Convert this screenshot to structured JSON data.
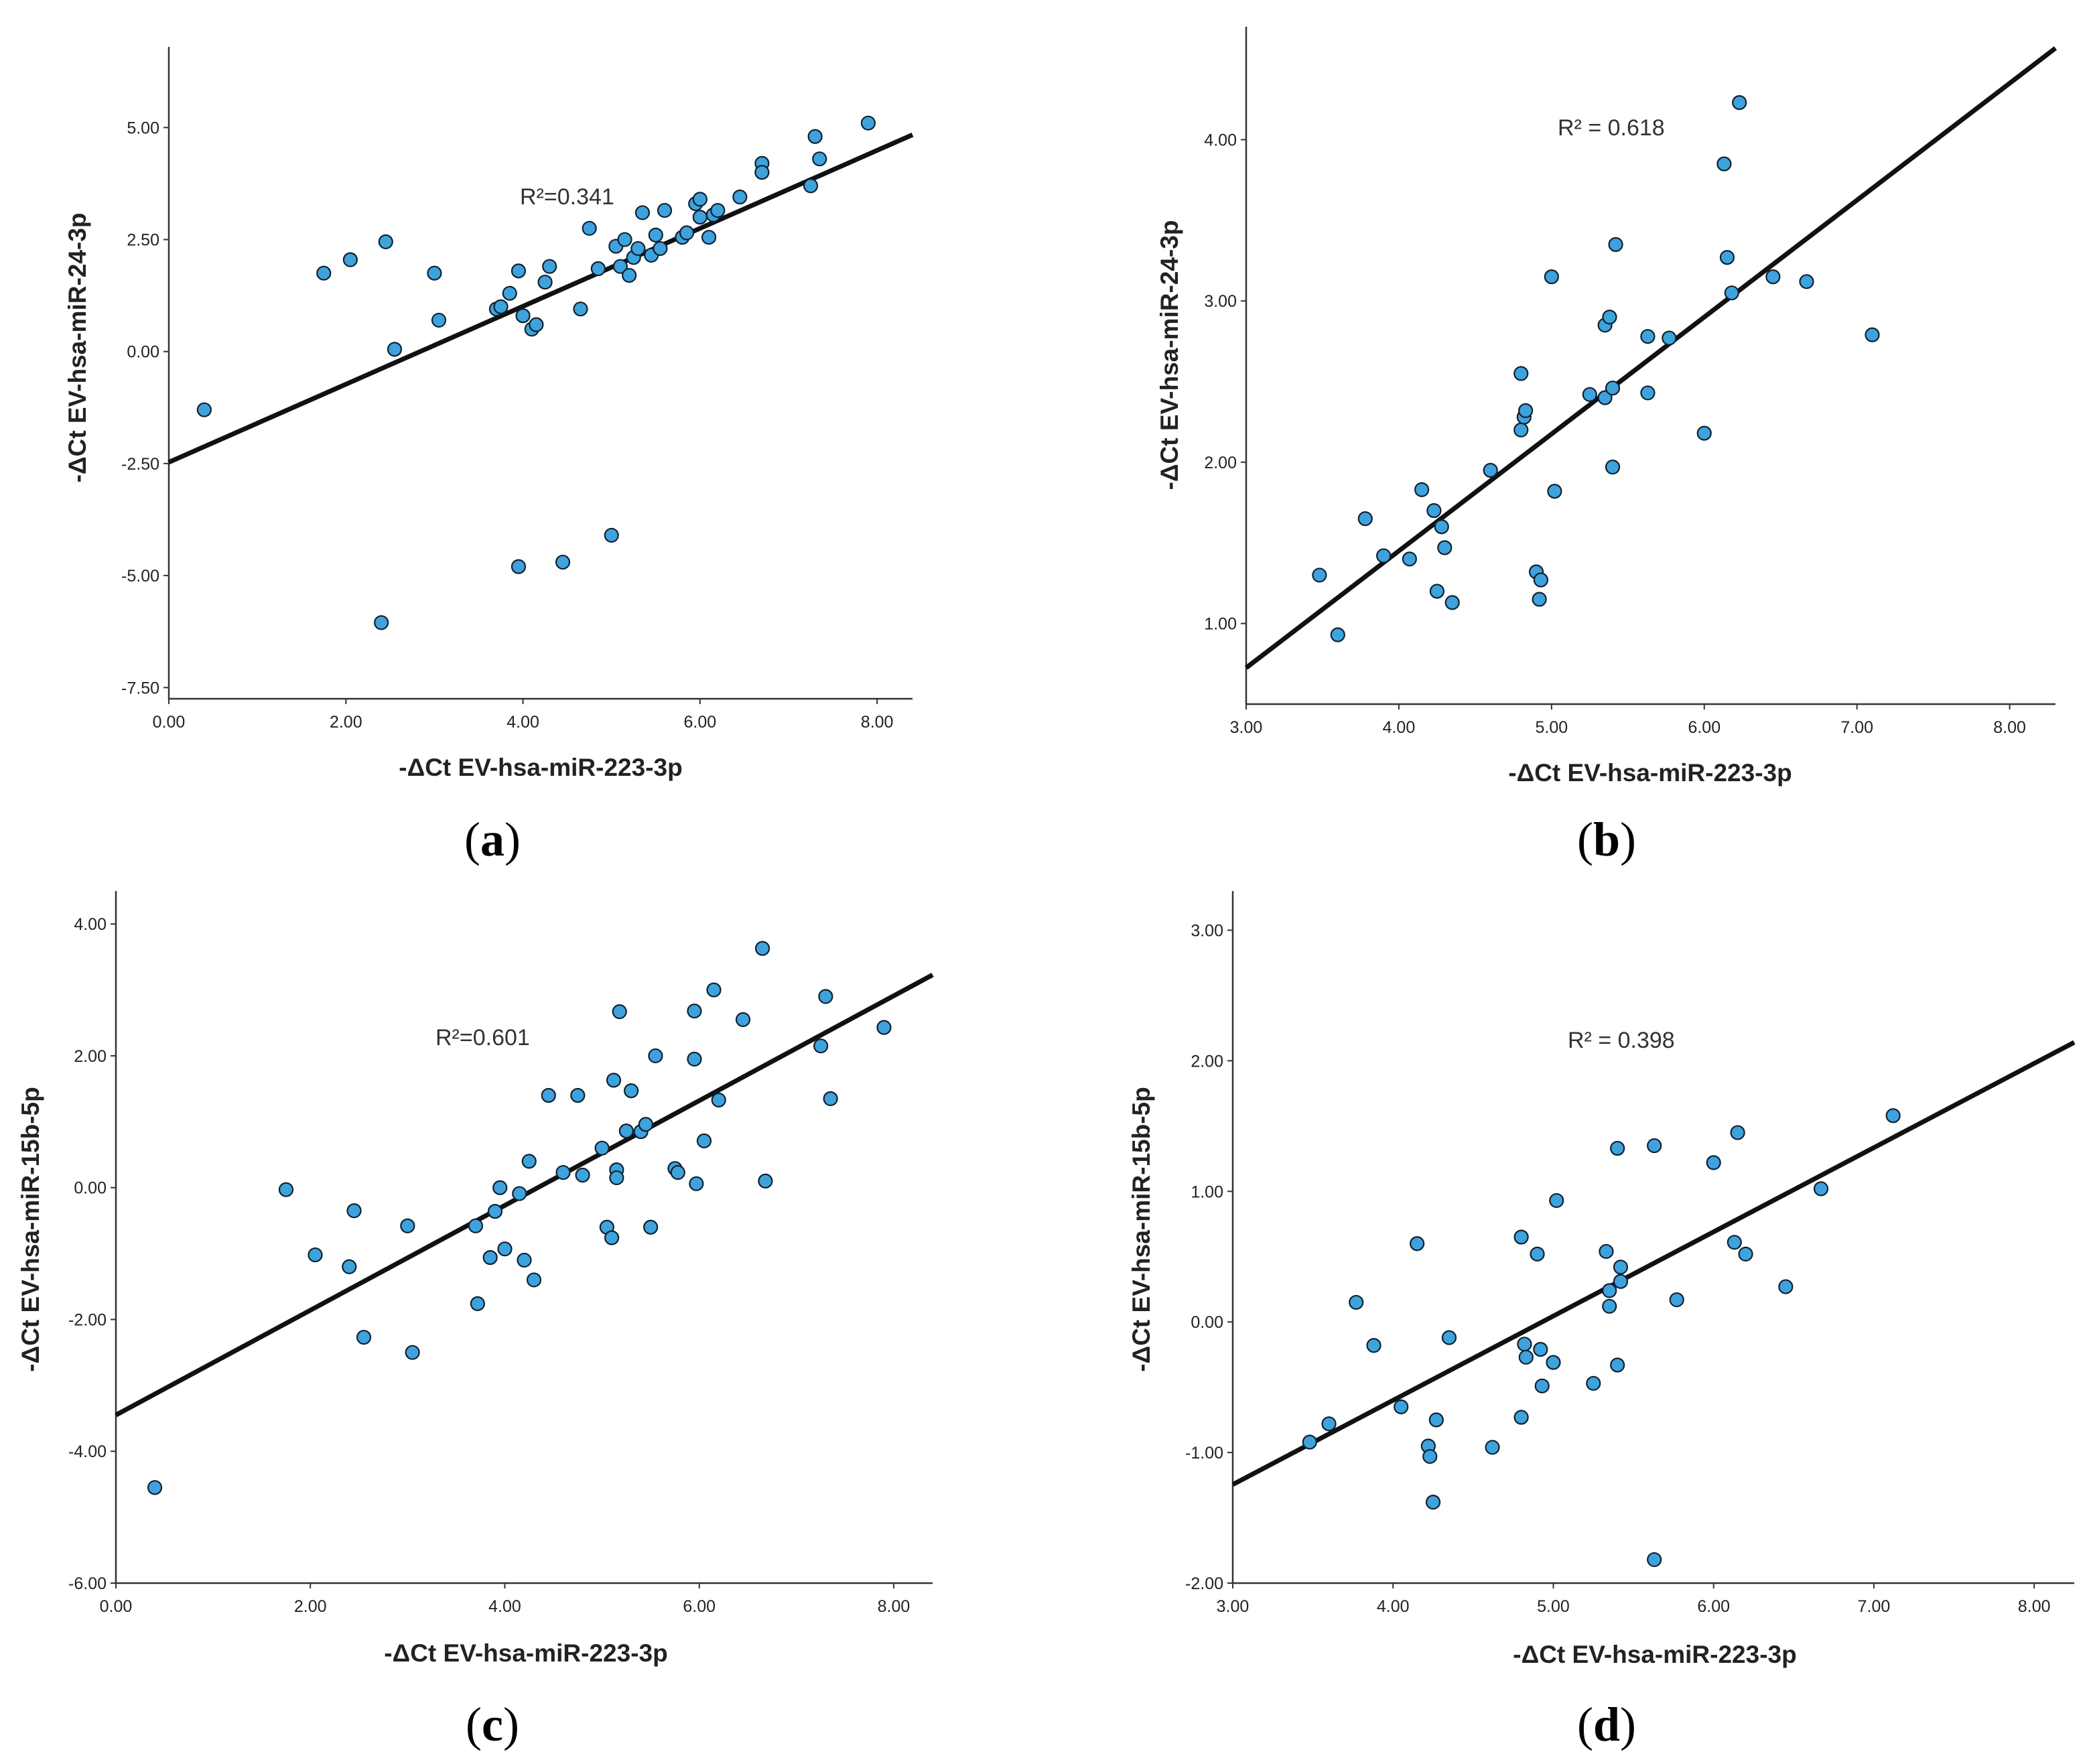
{
  "colors": {
    "point_fill": "#3ea2dc",
    "point_stroke": "#102030",
    "line": "#111111",
    "axis": "#333333"
  },
  "chart_data": [
    {
      "type": "scatter",
      "panel_label": "a",
      "title": "",
      "r2_text": "R²=0.341",
      "xlabel": "-ΔCt EV-hsa-miR-223-3p",
      "ylabel": "-ΔCt EV-hsa-miR-24-3p",
      "xlim": [
        0,
        8.4
      ],
      "ylim": [
        -7.75,
        6.8
      ],
      "xticks": [
        0,
        2,
        4,
        6,
        8
      ],
      "xtick_labels": [
        "0.00",
        "2.00",
        "4.00",
        "6.00",
        "8.00"
      ],
      "yticks": [
        -7.5,
        -5,
        -2.5,
        0,
        2.5,
        5
      ],
      "ytick_labels": [
        "-7.50",
        "-5.00",
        "-2.50",
        "0.00",
        "2.50",
        "5.00"
      ],
      "fit_line": {
        "intercept": -2.47,
        "slope": 0.87
      },
      "x": [
        0.4,
        1.75,
        2.05,
        2.45,
        2.55,
        3.0,
        3.05,
        3.7,
        3.75,
        3.85,
        3.95,
        4.0,
        4.1,
        4.15,
        4.25,
        4.3,
        4.65,
        4.75,
        4.85,
        5.05,
        5.1,
        5.15,
        5.2,
        5.25,
        5.3,
        5.35,
        5.45,
        5.5,
        5.55,
        5.6,
        5.8,
        5.85,
        5.95,
        6.0,
        6.0,
        6.1,
        6.15,
        6.2,
        6.45,
        6.7,
        6.7,
        7.25,
        7.3,
        7.35,
        7.9,
        2.4,
        3.95,
        4.45,
        5.0
      ],
      "y": [
        -1.3,
        1.75,
        2.05,
        2.45,
        0.05,
        1.75,
        0.7,
        0.95,
        1.0,
        1.3,
        1.8,
        0.8,
        0.5,
        0.6,
        1.55,
        1.9,
        0.95,
        2.75,
        1.85,
        2.35,
        1.9,
        2.5,
        1.7,
        2.1,
        2.3,
        3.1,
        2.15,
        2.6,
        2.3,
        3.15,
        2.55,
        2.65,
        3.3,
        3.0,
        3.4,
        2.55,
        3.05,
        3.15,
        3.45,
        4.2,
        4.0,
        3.7,
        4.8,
        4.3,
        5.1,
        -6.05,
        -4.8,
        -4.7,
        -4.1
      ]
    },
    {
      "type": "scatter",
      "panel_label": "b",
      "title": "",
      "r2_text": "R² = 0.618",
      "xlabel": "-ΔCt EV-hsa-miR-223-3p",
      "ylabel": "-ΔCt EV-hsa-miR-24-3p",
      "xlim": [
        3.0,
        8.3
      ],
      "ylim": [
        0.5,
        4.7
      ],
      "xticks": [
        3,
        4,
        5,
        6,
        7,
        8
      ],
      "xtick_labels": [
        "3.00",
        "4.00",
        "5.00",
        "6.00",
        "7.00",
        "8.00"
      ],
      "yticks": [
        1,
        2,
        3,
        4
      ],
      "ytick_labels": [
        "1.00",
        "2.00",
        "3.00",
        "4.00"
      ],
      "fit_line": {
        "intercept": -1.45,
        "slope": 0.725
      },
      "x": [
        3.48,
        3.6,
        3.78,
        3.9,
        4.07,
        4.15,
        4.23,
        4.25,
        4.28,
        4.3,
        4.35,
        4.6,
        4.8,
        4.8,
        4.82,
        4.83,
        4.9,
        4.92,
        4.93,
        5.0,
        5.02,
        5.25,
        5.35,
        5.35,
        5.38,
        5.4,
        5.4,
        5.42,
        5.63,
        5.63,
        5.77,
        6.0,
        6.13,
        6.15,
        6.18,
        6.23,
        6.45,
        6.67,
        7.1
      ],
      "y": [
        1.3,
        0.93,
        1.65,
        1.42,
        1.4,
        1.83,
        1.7,
        1.2,
        1.6,
        1.47,
        1.13,
        1.95,
        2.55,
        2.2,
        2.28,
        2.32,
        1.32,
        1.15,
        1.27,
        3.15,
        1.82,
        2.42,
        2.85,
        2.4,
        2.9,
        2.46,
        1.97,
        3.35,
        2.78,
        2.43,
        2.77,
        2.18,
        3.85,
        3.27,
        3.05,
        4.23,
        3.15,
        3.12,
        2.79
      ]
    },
    {
      "type": "scatter",
      "panel_label": "c",
      "title": "",
      "r2_text": "R²=0.601",
      "xlabel": "-ΔCt EV-hsa-miR-223-3p",
      "ylabel": "-ΔCt EV-hsa-miR-15b-5p",
      "xlim": [
        0,
        8.4
      ],
      "ylim": [
        -6.0,
        4.5
      ],
      "xticks": [
        0,
        2,
        4,
        6,
        8
      ],
      "xtick_labels": [
        "0.00",
        "2.00",
        "4.00",
        "6.00",
        "8.00"
      ],
      "yticks": [
        -6,
        -4,
        -2,
        0,
        2,
        4
      ],
      "ytick_labels": [
        "-6.00",
        "-4.00",
        "-2.00",
        "0.00",
        "2.00",
        "4.00"
      ],
      "fit_line": {
        "intercept": -3.45,
        "slope": 0.795
      },
      "x": [
        0.4,
        1.75,
        2.05,
        2.4,
        2.45,
        2.55,
        3.0,
        3.05,
        3.7,
        3.72,
        3.85,
        3.9,
        3.95,
        4.0,
        4.15,
        4.2,
        4.25,
        4.3,
        4.45,
        4.6,
        4.75,
        4.8,
        5.0,
        5.05,
        5.1,
        5.12,
        5.15,
        5.15,
        5.18,
        5.25,
        5.3,
        5.4,
        5.45,
        5.5,
        5.55,
        5.75,
        5.78,
        5.95,
        5.95,
        5.97,
        6.05,
        6.15,
        6.2,
        6.45,
        6.65,
        6.68,
        7.25,
        7.3,
        7.35,
        7.9
      ],
      "y": [
        -4.55,
        -0.03,
        -1.02,
        -1.2,
        -0.35,
        -2.27,
        -0.58,
        -2.5,
        -0.58,
        -1.76,
        -1.06,
        -0.36,
        0.0,
        -0.93,
        -0.09,
        -1.1,
        0.4,
        -1.4,
        1.4,
        0.23,
        1.4,
        0.19,
        0.6,
        -0.6,
        -0.76,
        1.63,
        0.27,
        0.15,
        2.67,
        0.86,
        1.47,
        0.85,
        0.96,
        -0.6,
        2.0,
        0.29,
        0.23,
        2.68,
        1.95,
        0.06,
        0.71,
        3.0,
        1.33,
        2.55,
        3.63,
        0.1,
        2.15,
        2.9,
        1.35,
        2.43
      ]
    },
    {
      "type": "scatter",
      "panel_label": "d",
      "title": "",
      "r2_text": "R² = 0.398",
      "xlabel": "-ΔCt EV-hsa-miR-223-3p",
      "ylabel": "-ΔCt EV-hsa-miR-15b-5p",
      "xlim": [
        3.0,
        8.25
      ],
      "ylim": [
        -2.0,
        3.3
      ],
      "xticks": [
        3,
        4,
        5,
        6,
        7,
        8
      ],
      "xtick_labels": [
        "3.00",
        "4.00",
        "5.00",
        "6.00",
        "7.00",
        "8.00"
      ],
      "yticks": [
        -2,
        -1,
        0,
        1,
        2,
        3
      ],
      "ytick_labels": [
        "-2.00",
        "-1.00",
        "0.00",
        "1.00",
        "2.00",
        "3.00"
      ],
      "fit_line": {
        "intercept": -3.18,
        "slope": 0.645
      },
      "x": [
        3.48,
        3.6,
        3.77,
        3.88,
        4.05,
        4.15,
        4.22,
        4.23,
        4.25,
        4.27,
        4.35,
        4.62,
        4.8,
        4.8,
        4.82,
        4.83,
        4.9,
        4.92,
        4.93,
        5.0,
        5.02,
        5.25,
        5.33,
        5.35,
        5.35,
        5.4,
        5.4,
        5.42,
        5.42,
        5.63,
        5.63,
        5.77,
        6.0,
        6.13,
        6.15,
        6.2,
        6.45,
        6.67,
        7.12
      ],
      "y": [
        -0.92,
        -0.78,
        0.15,
        -0.18,
        -0.65,
        0.6,
        -0.95,
        -1.03,
        -1.38,
        -0.75,
        -0.12,
        -0.96,
        0.65,
        -0.73,
        -0.17,
        -0.27,
        0.52,
        -0.21,
        -0.49,
        -0.31,
        0.93,
        -0.47,
        0.54,
        0.24,
        0.12,
        1.33,
        -0.33,
        0.42,
        0.31,
        1.35,
        -1.82,
        0.17,
        1.22,
        0.61,
        1.45,
        0.52,
        0.27,
        1.02,
        1.58
      ]
    }
  ]
}
